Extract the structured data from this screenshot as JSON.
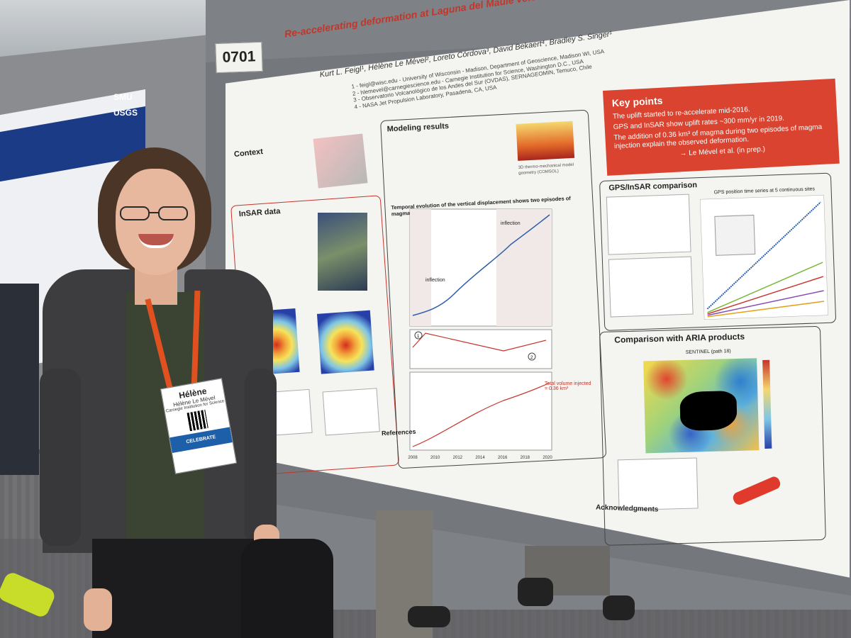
{
  "board": {
    "number": "0701"
  },
  "poster": {
    "title": "Re-accelerating deformation at Laguna del Maule volcanic field, Southern Andes",
    "authors": "Kurt L. Feigl¹, Hélène Le Mével², Loreto Córdova³, David Bekaert⁴, Bradley S. Singer¹",
    "affiliations": "1 - feigl@wisc.edu - University of Wisconsin - Madison, Department of Geoscience, Madison WI, USA\n2 - hlemevel@carnegiescience.edu - Carnegie Institution for Science, Washington D.C., USA\n3 - Observatorio Volcanológico de los Andes del Sur (OVDAS), SERNAGEOMIN, Temuco, Chile\n4 - NASA Jet Propulsion Laboratory, Pasadena, CA, USA",
    "key_points": {
      "heading": "Key points",
      "p1": "The uplift started to re-accelerate mid-2016.",
      "p2": "GPS and InSAR show uplift rates ~300 mm/yr in 2019.",
      "p3": "The addition of 0.36 km³ of magma during two episodes of magma injection explain the observed deformation.",
      "p4": "→ Le Mével et al. (in prep.)"
    },
    "sections": {
      "context": "Context",
      "insar": "InSAR data",
      "modeling": "Modeling results",
      "temporal": "Temporal evolution of the vertical displacement shows two episodes of magma injection",
      "gps": "GPS/InSAR comparison",
      "gps_sub": "GPS position time series at 5 continuous sites",
      "aria": "Comparison with ARIA products",
      "aria_sub": "SENTINEL (path 18)",
      "model_caption": "3D thermo-mechanical model geometry (COMSOL)",
      "references": "References",
      "ack": "Acknowledgments"
    },
    "annotations": {
      "inflection1": "inflection",
      "inflection2": "inflection",
      "total_volume": "Total volume injected = 0.36 km³",
      "marker1": "1",
      "marker2": "2"
    },
    "x_ticks": [
      "2008",
      "2010",
      "2012",
      "2014",
      "2016",
      "2018",
      "2020"
    ],
    "left_poster": {
      "logo1": "SMU",
      "logo2": "USGS"
    }
  },
  "badge": {
    "first_name": "Hélène",
    "full_name": "Hélène Le Mével",
    "org": "Carnegie Institution for Science",
    "banner": "CELEBRATE"
  },
  "colors": {
    "accent": "#c4352a",
    "keybox": "#d9432f",
    "lanyard": "#e1501f"
  }
}
